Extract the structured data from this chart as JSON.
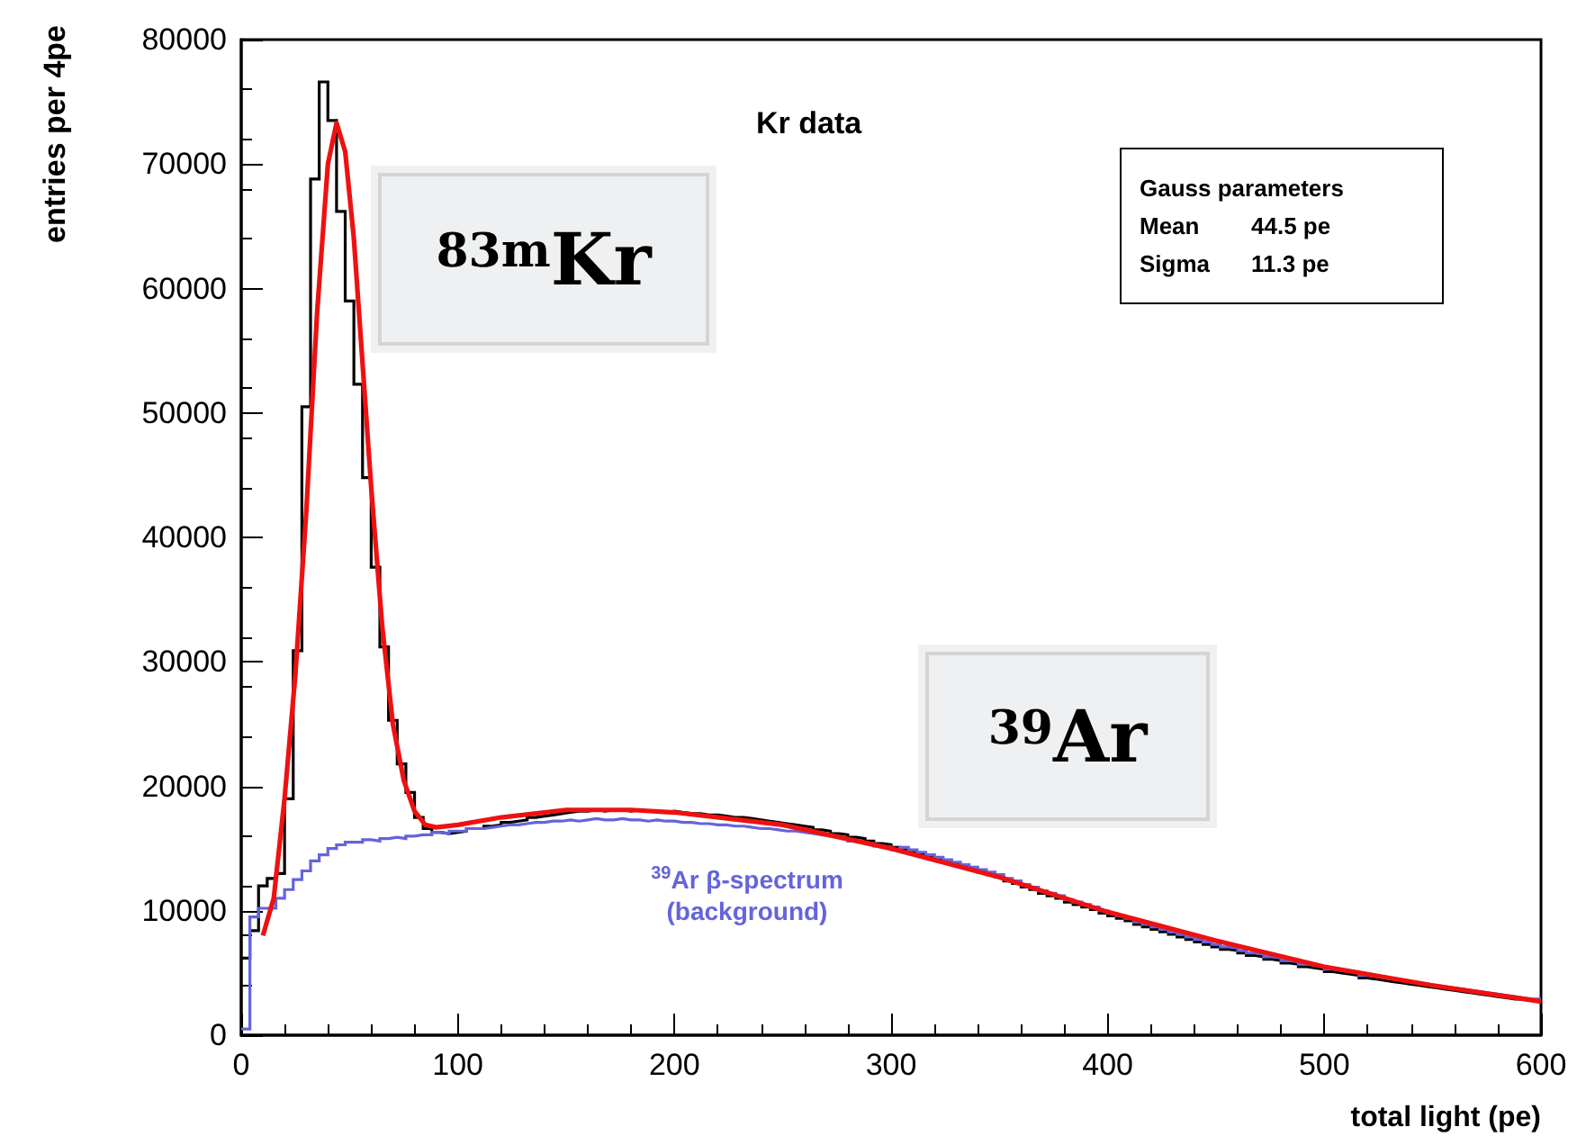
{
  "chart_data": {
    "type": "histogram",
    "title": "Kr data",
    "xlabel": "total light (pe)",
    "ylabel": "entries per 4pe",
    "bins": [
      0,
      4,
      8,
      12,
      16,
      20,
      24,
      28,
      32,
      36,
      40,
      44,
      48,
      52,
      56,
      60,
      64,
      68,
      72,
      76,
      80,
      84,
      88,
      92,
      96,
      100,
      104,
      108,
      112,
      116,
      120,
      124,
      128,
      132,
      136,
      140,
      144,
      148,
      152,
      156,
      160,
      164,
      168,
      172,
      176,
      180,
      184,
      188,
      192,
      196,
      200,
      204,
      208,
      212,
      216,
      220,
      224,
      228,
      232,
      236,
      240,
      244,
      248,
      252,
      256,
      260,
      264,
      268,
      272,
      276,
      280,
      284,
      288,
      292,
      296,
      300,
      304,
      308,
      312,
      316,
      320,
      324,
      328,
      332,
      336,
      340,
      344,
      348,
      352,
      356,
      360,
      364,
      368,
      372,
      376,
      380,
      384,
      388,
      392,
      396,
      400,
      404,
      408,
      412,
      416,
      420,
      424,
      428,
      432,
      436,
      440,
      444,
      448,
      452,
      456,
      460,
      464,
      468,
      472,
      476,
      480,
      484,
      488,
      492,
      496,
      500,
      504,
      508,
      512,
      516,
      520,
      524,
      528,
      532,
      536,
      540,
      544,
      548,
      552,
      556,
      560,
      564,
      568,
      572,
      576,
      580,
      584,
      588,
      592,
      596,
      600
    ],
    "series": [
      {
        "color": "#000000",
        "values": [
          6200,
          8400,
          12000,
          12600,
          13000,
          19000,
          30900,
          50500,
          68800,
          76600,
          73500,
          66200,
          59000,
          52300,
          44800,
          37600,
          31200,
          25300,
          21800,
          19500,
          17500,
          16600,
          16300,
          16200,
          16300,
          16400,
          16600,
          16600,
          16800,
          16900,
          17100,
          17200,
          17300,
          17500,
          17600,
          17700,
          17800,
          17900,
          18000,
          18000,
          18100,
          18000,
          18100,
          18100,
          18000,
          18100,
          18000,
          18000,
          17900,
          18000,
          17900,
          17800,
          17800,
          17700,
          17700,
          17600,
          17500,
          17500,
          17400,
          17300,
          17200,
          17100,
          17000,
          16900,
          16800,
          16700,
          16500,
          16400,
          16200,
          16100,
          15900,
          15800,
          15600,
          15400,
          15300,
          15100,
          14900,
          14700,
          14500,
          14300,
          14100,
          13900,
          13700,
          13500,
          13300,
          13100,
          12900,
          12700,
          12400,
          12200,
          11900,
          11700,
          11400,
          11200,
          11000,
          10700,
          10500,
          10300,
          10100,
          9800,
          9600,
          9400,
          9200,
          8900,
          8700,
          8500,
          8300,
          8100,
          7900,
          7700,
          7500,
          7300,
          7100,
          6900,
          6800,
          6600,
          6400,
          6300,
          6100,
          6000,
          5800,
          5700,
          5500,
          5400,
          5300,
          5100,
          5000,
          4900,
          4800,
          4600,
          4500,
          4400,
          4300,
          4200,
          4100,
          4000,
          3900,
          3800,
          3700,
          3600,
          3500,
          3400,
          3300,
          3200,
          3100,
          3000,
          2900,
          2900,
          2800,
          2700
        ]
      },
      {
        "name": "$^{39}$Ar β-spectrum (background)",
        "color": "#6464dc",
        "values": [
          500,
          9500,
          10200,
          10200,
          11000,
          11700,
          12500,
          13200,
          14000,
          14500,
          15000,
          15300,
          15500,
          15500,
          15700,
          15600,
          15800,
          15900,
          15800,
          16000,
          16100,
          16100,
          16300,
          16200,
          16400,
          16400,
          16600,
          16600,
          16700,
          16800,
          16900,
          16900,
          17000,
          17100,
          17100,
          17200,
          17200,
          17300,
          17200,
          17300,
          17400,
          17300,
          17300,
          17400,
          17300,
          17300,
          17200,
          17300,
          17200,
          17200,
          17100,
          17100,
          17000,
          17000,
          16900,
          16900,
          16800,
          16800,
          16700,
          16600,
          16600,
          16500,
          16400,
          16400,
          16300,
          16200,
          16100,
          16000,
          15900,
          15800,
          15600,
          15500,
          15400,
          15200,
          15100,
          14900,
          15100,
          14900,
          14700,
          14500,
          14300,
          14100,
          13900,
          13700,
          13500,
          13300,
          13100,
          12900,
          12600,
          12400,
          12100,
          11900,
          11600,
          11400,
          11200,
          10900,
          10700,
          10500,
          10300,
          10000,
          9800,
          9600,
          9400,
          9100,
          8900,
          8700,
          8500,
          8300,
          8100,
          7900,
          7700,
          7500,
          7300,
          7100,
          7000,
          6800,
          6600,
          6500,
          6300,
          6200,
          6000,
          5900,
          5700,
          5600,
          5500,
          5300,
          5200,
          5100,
          5000,
          4800,
          4700,
          4600,
          4500,
          4400,
          4300,
          4200,
          4100,
          4000,
          3900,
          3800,
          3700,
          3600,
          3500,
          3400,
          3300,
          3200,
          3100,
          3000,
          2900,
          2900
        ]
      },
      {
        "type": "line",
        "color": "#ee1111",
        "x": [
          10,
          15,
          20,
          25,
          30,
          35,
          40,
          44,
          48,
          52,
          56,
          60,
          65,
          70,
          75,
          80,
          85,
          90,
          100,
          120,
          150,
          180,
          200,
          250,
          300,
          350,
          400,
          450,
          500,
          550,
          600
        ],
        "values": [
          8000,
          11000,
          19000,
          29000,
          42000,
          58000,
          70000,
          73300,
          71000,
          64000,
          54000,
          44000,
          33000,
          25000,
          20500,
          18000,
          16900,
          16700,
          16900,
          17500,
          18100,
          18100,
          17900,
          16900,
          15000,
          12700,
          9900,
          7600,
          5500,
          4000,
          2700
        ]
      }
    ],
    "xlim": [
      0,
      600
    ],
    "xticks": [
      0,
      100,
      200,
      300,
      400,
      500,
      600
    ],
    "ylim": [
      0,
      80000
    ],
    "yticks": [
      0,
      10000,
      20000,
      30000,
      40000,
      50000,
      60000,
      70000,
      80000
    ],
    "grid": false,
    "legend": false,
    "annotations": [
      "$^{83m}$Kr",
      "$^{39}$Ar",
      "Gauss parameters",
      "Mean 44.5 pe",
      "Sigma 11.3 pe"
    ]
  }
}
